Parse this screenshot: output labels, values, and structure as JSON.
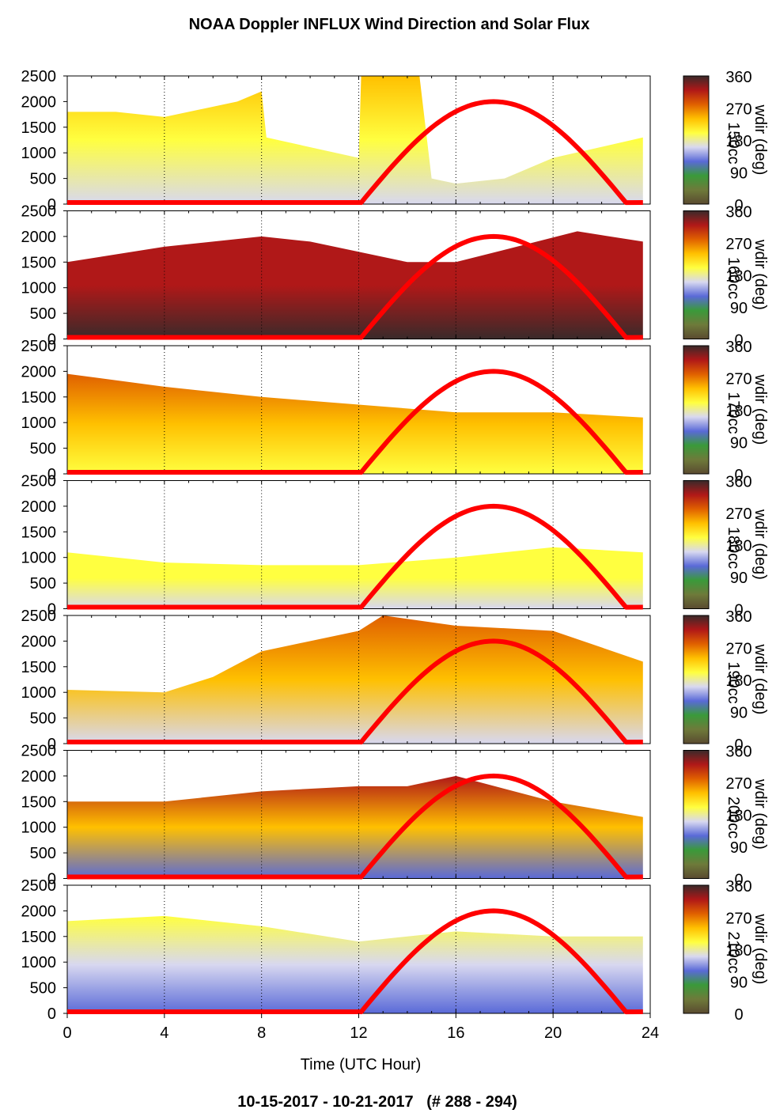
{
  "title": "NOAA Doppler INFLUX Wind Direction and Solar Flux",
  "footer": "10-15-2017 - 10-21-2017   (# 288 - 294)",
  "colors": {
    "solar_curve": "#ff0000",
    "colormap": [
      "#5a4a30",
      "#6e7a3a",
      "#3a9a3a",
      "#5a6ad8",
      "#d8d8f0",
      "#ffff40",
      "#ffc000",
      "#e06000",
      "#b01818",
      "#3a2a2a"
    ]
  },
  "chart_data": {
    "type": "heatmap",
    "xlabel": "Time (UTC Hour)",
    "xlim": [
      0,
      24
    ],
    "x_ticks": [
      0,
      4,
      8,
      12,
      16,
      20,
      24
    ],
    "ylim": [
      0,
      2500
    ],
    "y_ticks": [
      0,
      500,
      1000,
      1500,
      2000,
      2500
    ],
    "colorbar": {
      "label": "wdir (deg)",
      "ticks": [
        0,
        90,
        180,
        270,
        360
      ]
    },
    "grid": "dotted vertical lines every 4 hours",
    "panels": [
      {
        "id": "panel-1",
        "side_label": "150cc",
        "data_top_m": [
          [
            0,
            1800
          ],
          [
            2,
            1800
          ],
          [
            4,
            1700
          ],
          [
            7,
            2000
          ],
          [
            8,
            2200
          ],
          [
            8.2,
            1300
          ],
          [
            12,
            900
          ],
          [
            12.1,
            2500
          ],
          [
            14.5,
            2500
          ],
          [
            15,
            500
          ],
          [
            16,
            400
          ],
          [
            18,
            500
          ],
          [
            20,
            900
          ],
          [
            23.7,
            1300
          ]
        ],
        "solar_flux": {
          "sunrise_hour": 12.1,
          "peak_hour": 17.5,
          "sunset_hour": 23.0,
          "peak_value_m_equiv": 2000
        }
      },
      {
        "id": "panel-2",
        "side_label": "160cc",
        "data_top_m": [
          [
            0,
            1500
          ],
          [
            4,
            1800
          ],
          [
            8,
            2000
          ],
          [
            10,
            1900
          ],
          [
            14,
            1500
          ],
          [
            16,
            1500
          ],
          [
            21,
            2100
          ],
          [
            23.7,
            1900
          ]
        ],
        "solar_flux": {
          "sunrise_hour": 12.1,
          "peak_hour": 17.5,
          "sunset_hour": 23.0,
          "peak_value_m_equiv": 2000
        }
      },
      {
        "id": "panel-3",
        "side_label": "170cc",
        "data_top_m": [
          [
            0,
            1950
          ],
          [
            4,
            1700
          ],
          [
            8,
            1500
          ],
          [
            12,
            1350
          ],
          [
            16,
            1200
          ],
          [
            20,
            1200
          ],
          [
            23.7,
            1100
          ]
        ],
        "solar_flux": {
          "sunrise_hour": 12.1,
          "peak_hour": 17.5,
          "sunset_hour": 23.0,
          "peak_value_m_equiv": 2000
        }
      },
      {
        "id": "panel-4",
        "side_label": "180cc",
        "data_top_m": [
          [
            0,
            1100
          ],
          [
            4,
            900
          ],
          [
            8,
            850
          ],
          [
            12,
            850
          ],
          [
            16,
            1000
          ],
          [
            20,
            1200
          ],
          [
            23.7,
            1100
          ]
        ],
        "solar_flux": {
          "sunrise_hour": 12.1,
          "peak_hour": 17.5,
          "sunset_hour": 23.0,
          "peak_value_m_equiv": 2000
        }
      },
      {
        "id": "panel-5",
        "side_label": "190cc",
        "data_top_m": [
          [
            0,
            1050
          ],
          [
            4,
            1000
          ],
          [
            6,
            1300
          ],
          [
            8,
            1800
          ],
          [
            12,
            2200
          ],
          [
            13,
            2500
          ],
          [
            16,
            2300
          ],
          [
            20,
            2200
          ],
          [
            23.7,
            1600
          ]
        ],
        "solar_flux": {
          "sunrise_hour": 12.1,
          "peak_hour": 17.5,
          "sunset_hour": 23.0,
          "peak_value_m_equiv": 2000
        }
      },
      {
        "id": "panel-6",
        "side_label": "200cc",
        "data_top_m": [
          [
            0,
            1500
          ],
          [
            4,
            1500
          ],
          [
            8,
            1700
          ],
          [
            12,
            1800
          ],
          [
            14,
            1800
          ],
          [
            16,
            2000
          ],
          [
            20,
            1500
          ],
          [
            23.7,
            1200
          ]
        ],
        "solar_flux": {
          "sunrise_hour": 12.1,
          "peak_hour": 17.5,
          "sunset_hour": 23.0,
          "peak_value_m_equiv": 2000
        }
      },
      {
        "id": "panel-7",
        "side_label": "210cc",
        "data_top_m": [
          [
            0,
            1800
          ],
          [
            4,
            1900
          ],
          [
            8,
            1700
          ],
          [
            12,
            1400
          ],
          [
            16,
            1600
          ],
          [
            20,
            1500
          ],
          [
            23.7,
            1500
          ]
        ],
        "solar_flux": {
          "sunrise_hour": 12.1,
          "peak_hour": 17.5,
          "sunset_hour": 23.0,
          "peak_value_m_equiv": 2000
        }
      }
    ]
  }
}
